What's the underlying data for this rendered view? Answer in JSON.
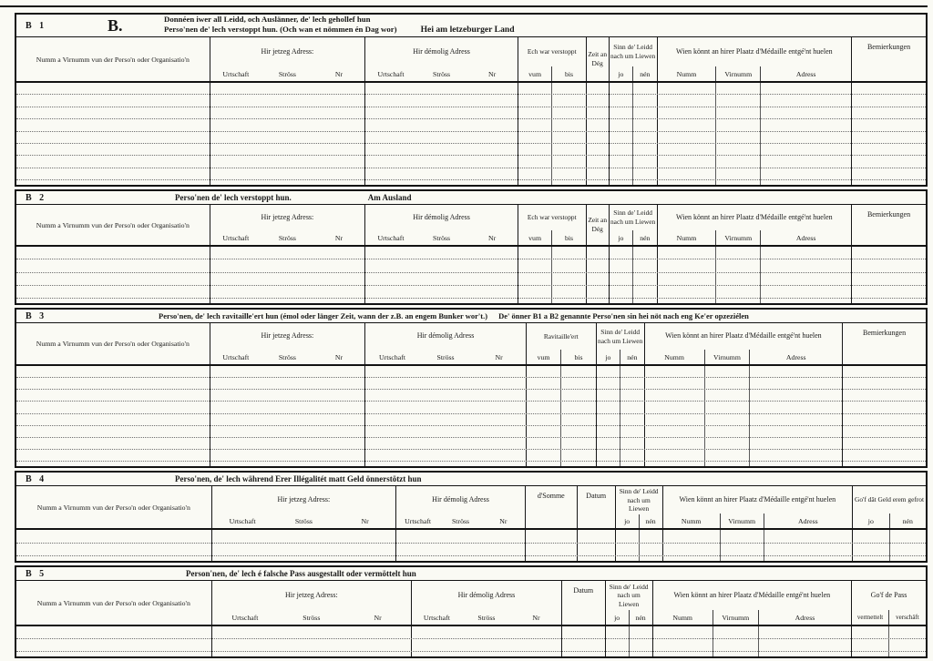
{
  "form": {
    "letter": "B.",
    "title_line1": "Donnéen iwer all Leidd, och Auslänner, de' lech gehollef hun",
    "title_line2": "Perso'nen de' lech verstoppt hun. (Och wan et nömmen én Dag wor)",
    "title_location": "Hei am letzeburger Land"
  },
  "labels": {
    "name": "Numm a Virnumm vun der Perso'n oder Organisatio'n",
    "current_address": "Hir jetzeg Adress:",
    "former_address": "Hir démolig Adress",
    "urtschaft": "Urtschaft",
    "stross": "Ströss",
    "nr": "Nr",
    "hidden": "Ech war verstoppt",
    "vum": "vum",
    "bis": "bis",
    "zeit": "Zeit an Dég",
    "alive": "Sinn de' Leidd nach um Liewen",
    "jo": "jo",
    "nen": "nén",
    "medal": "Wien könnt an hirer Plaatz d'Médaille entgé'nt huelen",
    "numm": "Numm",
    "virnumm": "Virnumm",
    "adress": "Adress",
    "remarks": "Bemierkungen",
    "ravitailleert": "Ravitaille'ert",
    "somme": "d'Somme",
    "datum": "Datum",
    "money_returned": "Go'f dât Geld erem gefrot",
    "pass": "Go'f de Pass",
    "vermettelt": "vermettelt",
    "verschaft": "verschäft"
  },
  "sections": [
    {
      "id": "B 1",
      "rows": 8
    },
    {
      "id": "B 2",
      "rows": 4,
      "title": "Perso'nen de' lech verstoppt hun.",
      "subtitle": "Am Ausland"
    },
    {
      "id": "B 3",
      "rows": 8,
      "title": "Perso'nen, de' lech ravitaille'ert hun (émol oder länger Zeit, wann der z.B. an engem Bunker wor't.)",
      "subtitle": "De' önner B1 a B2 genannte Perso'nen sin hei nöt nach eng Ke'er opzeziélen"
    },
    {
      "id": "B 4",
      "rows": 2,
      "title": "Perso'nen, de' lech während Erer Illégalitét matt Geld önnerstötzt hun"
    },
    {
      "id": "B 5",
      "rows": 2,
      "title": "Person'nen, de' lech é falsche Pass ausgestallt oder vermöttelt hun"
    }
  ]
}
